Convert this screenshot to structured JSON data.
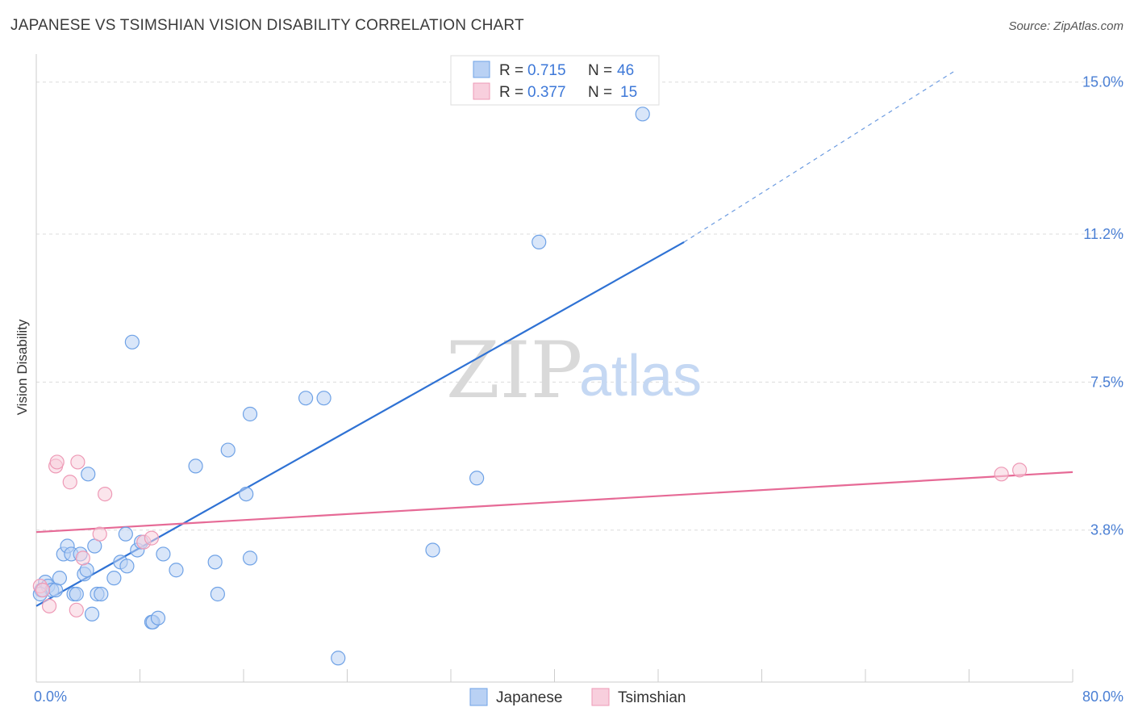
{
  "chart_data": {
    "type": "scatter",
    "title": "JAPANESE VS TSIMSHIAN VISION DISABILITY CORRELATION CHART",
    "source": "Source: ZipAtlas.com",
    "xlabel": "",
    "ylabel": "Vision Disability",
    "xlim": [
      0,
      80
    ],
    "ylim": [
      0,
      15.7
    ],
    "x_tick_labels": [
      "0.0%",
      "80.0%"
    ],
    "y_ticks": [
      3.8,
      7.5,
      11.2,
      15.0
    ],
    "y_tick_labels": [
      "3.8%",
      "7.5%",
      "11.2%",
      "15.0%"
    ],
    "grid": true,
    "watermark": {
      "zip": "ZIP",
      "atlas": "atlas"
    },
    "legend": {
      "position": "top-center",
      "entries": [
        {
          "r_label": "R = ",
          "r_value": "0.715",
          "n_label": "N = ",
          "n_value": "46"
        },
        {
          "r_label": "R = ",
          "r_value": "0.377",
          "n_label": "N = ",
          "n_value": "15"
        }
      ]
    },
    "series": [
      {
        "name": "Japanese",
        "color": "#6fa2e6",
        "fill": "#b9d1f4",
        "line_color": "#2f72d4",
        "trend": {
          "x0": 0,
          "y0": 1.9,
          "x1": 50,
          "y1": 11.0,
          "extend_to_x": 71,
          "extend_to_y": 15.3
        },
        "points": [
          [
            0.4,
            2.3
          ],
          [
            0.7,
            2.5
          ],
          [
            0.9,
            2.4
          ],
          [
            1.2,
            2.3
          ],
          [
            1.5,
            2.3
          ],
          [
            1.8,
            2.6
          ],
          [
            2.1,
            3.2
          ],
          [
            2.4,
            3.4
          ],
          [
            2.7,
            3.2
          ],
          [
            2.9,
            2.2
          ],
          [
            3.1,
            2.2
          ],
          [
            3.4,
            3.2
          ],
          [
            3.7,
            2.7
          ],
          [
            3.9,
            2.8
          ],
          [
            4.0,
            5.2
          ],
          [
            4.3,
            1.7
          ],
          [
            4.5,
            3.4
          ],
          [
            4.7,
            2.2
          ],
          [
            5.0,
            2.2
          ],
          [
            6.0,
            2.6
          ],
          [
            6.5,
            3.0
          ],
          [
            6.9,
            3.7
          ],
          [
            7.0,
            2.9
          ],
          [
            7.4,
            8.5
          ],
          [
            7.8,
            3.3
          ],
          [
            8.1,
            3.5
          ],
          [
            8.9,
            1.5
          ],
          [
            9.0,
            1.5
          ],
          [
            9.4,
            1.6
          ],
          [
            9.8,
            3.2
          ],
          [
            10.8,
            2.8
          ],
          [
            12.3,
            5.4
          ],
          [
            13.8,
            3.0
          ],
          [
            14.0,
            2.2
          ],
          [
            14.8,
            5.8
          ],
          [
            16.2,
            4.7
          ],
          [
            16.5,
            6.7
          ],
          [
            16.5,
            3.1
          ],
          [
            20.8,
            7.1
          ],
          [
            22.2,
            7.1
          ],
          [
            23.3,
            0.6
          ],
          [
            30.6,
            3.3
          ],
          [
            34.0,
            5.1
          ],
          [
            38.8,
            11.0
          ],
          [
            46.8,
            14.2
          ],
          [
            0.3,
            2.2
          ]
        ]
      },
      {
        "name": "Tsimshian",
        "color": "#ee9ab6",
        "fill": "#f8cfdd",
        "line_color": "#e66a96",
        "trend": {
          "x0": 0,
          "y0": 3.75,
          "x1": 80,
          "y1": 5.25
        },
        "points": [
          [
            0.3,
            2.4
          ],
          [
            0.5,
            2.3
          ],
          [
            1.0,
            1.9
          ],
          [
            1.5,
            5.4
          ],
          [
            1.6,
            5.5
          ],
          [
            2.6,
            5.0
          ],
          [
            3.1,
            1.8
          ],
          [
            3.2,
            5.5
          ],
          [
            3.6,
            3.1
          ],
          [
            4.9,
            3.7
          ],
          [
            5.3,
            4.7
          ],
          [
            8.3,
            3.5
          ],
          [
            8.9,
            3.6
          ],
          [
            74.5,
            5.2
          ],
          [
            75.9,
            5.3
          ]
        ]
      }
    ]
  }
}
